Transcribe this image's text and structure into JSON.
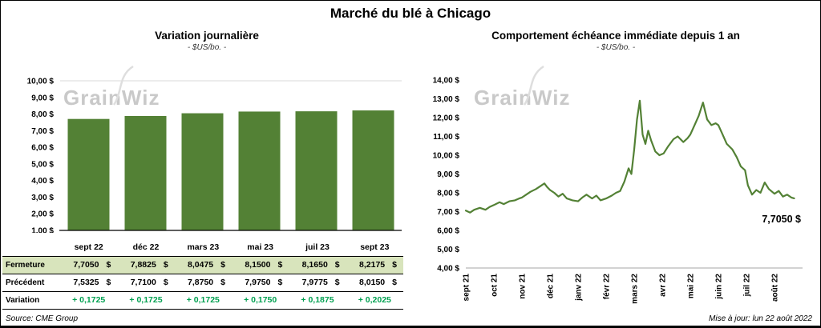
{
  "title": "Marché du blé à Chicago",
  "watermark": "GrainWiz",
  "footer": {
    "source": "Source: CME Group",
    "updated": "Mise à jour: lun 22 août 2022"
  },
  "colors": {
    "bar": "#538135",
    "line": "#538135",
    "variation_text": "#00A050",
    "highlight_row_bg": "#D8E4BC",
    "watermark": "#C9C9C9",
    "gridline": "#D9D9D9",
    "axis": "#000000"
  },
  "chart_data": [
    {
      "type": "bar",
      "title": "Variation journalière",
      "subtitle": "- $US/bo. -",
      "categories": [
        "sept 22",
        "déc 22",
        "mars 23",
        "mai 23",
        "juil 23",
        "sept 23"
      ],
      "values": [
        7.705,
        7.8825,
        8.0475,
        8.15,
        8.165,
        8.2175
      ],
      "ylim": [
        1,
        10
      ],
      "yticks": [
        {
          "v": 10,
          "label": "10,00 $"
        },
        {
          "v": 9,
          "label": "9,00 $"
        },
        {
          "v": 8,
          "label": "8,00 $"
        },
        {
          "v": 7,
          "label": "7,00 $"
        },
        {
          "v": 6,
          "label": "6,00 $"
        },
        {
          "v": 5,
          "label": "5,00 $"
        },
        {
          "v": 4,
          "label": "4,00 $"
        },
        {
          "v": 3,
          "label": "3,00 $"
        },
        {
          "v": 2,
          "label": "2,00 $"
        },
        {
          "v": 1,
          "label": "1,00 $"
        }
      ],
      "table": {
        "rows": [
          {
            "label": "Fermeture",
            "unit": "$",
            "highlight": true,
            "green": false,
            "values": [
              "7,7050",
              "7,8825",
              "8,0475",
              "8,1500",
              "8,1650",
              "8,2175"
            ]
          },
          {
            "label": "Précédent",
            "unit": "$",
            "highlight": false,
            "green": false,
            "values": [
              "7,5325",
              "7,7100",
              "7,8750",
              "7,9750",
              "7,9775",
              "8,0150"
            ]
          },
          {
            "label": "Variation",
            "unit": "",
            "highlight": false,
            "green": true,
            "values": [
              "+ 0,1725",
              "+ 0,1725",
              "+ 0,1725",
              "+ 0,1750",
              "+ 0,1875",
              "+ 0,2025"
            ]
          }
        ]
      }
    },
    {
      "type": "line",
      "title": "Comportement échéance immédiate depuis 1 an",
      "subtitle": "- $US/bo. -",
      "ylim": [
        4,
        14
      ],
      "yticks": [
        {
          "v": 14,
          "label": "14,00 $"
        },
        {
          "v": 13,
          "label": "13,00 $"
        },
        {
          "v": 12,
          "label": "12,00 $"
        },
        {
          "v": 11,
          "label": "11,00 $"
        },
        {
          "v": 10,
          "label": "10,00 $"
        },
        {
          "v": 9,
          "label": "9,00 $"
        },
        {
          "v": 8,
          "label": "8,00 $"
        },
        {
          "v": 7,
          "label": "7,00 $"
        },
        {
          "v": 6,
          "label": "6,00 $"
        },
        {
          "v": 5,
          "label": "5,00 $"
        },
        {
          "v": 4,
          "label": "4,00 $"
        }
      ],
      "xticks": [
        {
          "m": 0,
          "label": "sept 21"
        },
        {
          "m": 1,
          "label": "oct 21"
        },
        {
          "m": 2,
          "label": "nov 21"
        },
        {
          "m": 3,
          "label": "déc 21"
        },
        {
          "m": 4,
          "label": "janv 22"
        },
        {
          "m": 5,
          "label": "févr 22"
        },
        {
          "m": 6,
          "label": "mars 22"
        },
        {
          "m": 7,
          "label": "avr 22"
        },
        {
          "m": 8,
          "label": "mai 22"
        },
        {
          "m": 9,
          "label": "juin 22"
        },
        {
          "m": 10,
          "label": "juil 22"
        },
        {
          "m": 11,
          "label": "août 22"
        }
      ],
      "points": [
        [
          0.0,
          7.05
        ],
        [
          0.15,
          6.95
        ],
        [
          0.3,
          7.1
        ],
        [
          0.5,
          7.2
        ],
        [
          0.7,
          7.1
        ],
        [
          0.85,
          7.25
        ],
        [
          1.0,
          7.35
        ],
        [
          1.2,
          7.5
        ],
        [
          1.35,
          7.4
        ],
        [
          1.55,
          7.55
        ],
        [
          1.75,
          7.6
        ],
        [
          1.9,
          7.7
        ],
        [
          2.0,
          7.75
        ],
        [
          2.15,
          7.9
        ],
        [
          2.3,
          8.05
        ],
        [
          2.5,
          8.2
        ],
        [
          2.65,
          8.35
        ],
        [
          2.8,
          8.5
        ],
        [
          2.9,
          8.3
        ],
        [
          3.0,
          8.15
        ],
        [
          3.15,
          8.0
        ],
        [
          3.3,
          7.8
        ],
        [
          3.45,
          7.95
        ],
        [
          3.6,
          7.7
        ],
        [
          3.8,
          7.6
        ],
        [
          4.0,
          7.55
        ],
        [
          4.15,
          7.75
        ],
        [
          4.3,
          7.9
        ],
        [
          4.5,
          7.7
        ],
        [
          4.65,
          7.85
        ],
        [
          4.8,
          7.6
        ],
        [
          5.0,
          7.7
        ],
        [
          5.2,
          7.85
        ],
        [
          5.35,
          8.0
        ],
        [
          5.5,
          8.1
        ],
        [
          5.65,
          8.6
        ],
        [
          5.8,
          9.3
        ],
        [
          5.9,
          9.0
        ],
        [
          6.0,
          10.3
        ],
        [
          6.1,
          11.9
        ],
        [
          6.2,
          12.9
        ],
        [
          6.3,
          11.1
        ],
        [
          6.4,
          10.6
        ],
        [
          6.5,
          11.3
        ],
        [
          6.6,
          10.8
        ],
        [
          6.75,
          10.2
        ],
        [
          6.9,
          10.0
        ],
        [
          7.05,
          10.1
        ],
        [
          7.2,
          10.45
        ],
        [
          7.4,
          10.85
        ],
        [
          7.55,
          11.0
        ],
        [
          7.75,
          10.7
        ],
        [
          7.9,
          10.9
        ],
        [
          8.0,
          11.1
        ],
        [
          8.15,
          11.6
        ],
        [
          8.3,
          12.1
        ],
        [
          8.45,
          12.8
        ],
        [
          8.6,
          11.9
        ],
        [
          8.75,
          11.6
        ],
        [
          8.9,
          11.7
        ],
        [
          9.0,
          11.6
        ],
        [
          9.15,
          11.1
        ],
        [
          9.3,
          10.6
        ],
        [
          9.5,
          10.3
        ],
        [
          9.65,
          9.9
        ],
        [
          9.8,
          9.4
        ],
        [
          9.95,
          9.2
        ],
        [
          10.05,
          8.4
        ],
        [
          10.2,
          7.9
        ],
        [
          10.35,
          8.15
        ],
        [
          10.5,
          8.0
        ],
        [
          10.65,
          8.55
        ],
        [
          10.8,
          8.2
        ],
        [
          11.0,
          7.95
        ],
        [
          11.15,
          8.1
        ],
        [
          11.3,
          7.8
        ],
        [
          11.45,
          7.9
        ],
        [
          11.6,
          7.75
        ],
        [
          11.7,
          7.705
        ]
      ],
      "annotation": "7,7050 $"
    }
  ]
}
